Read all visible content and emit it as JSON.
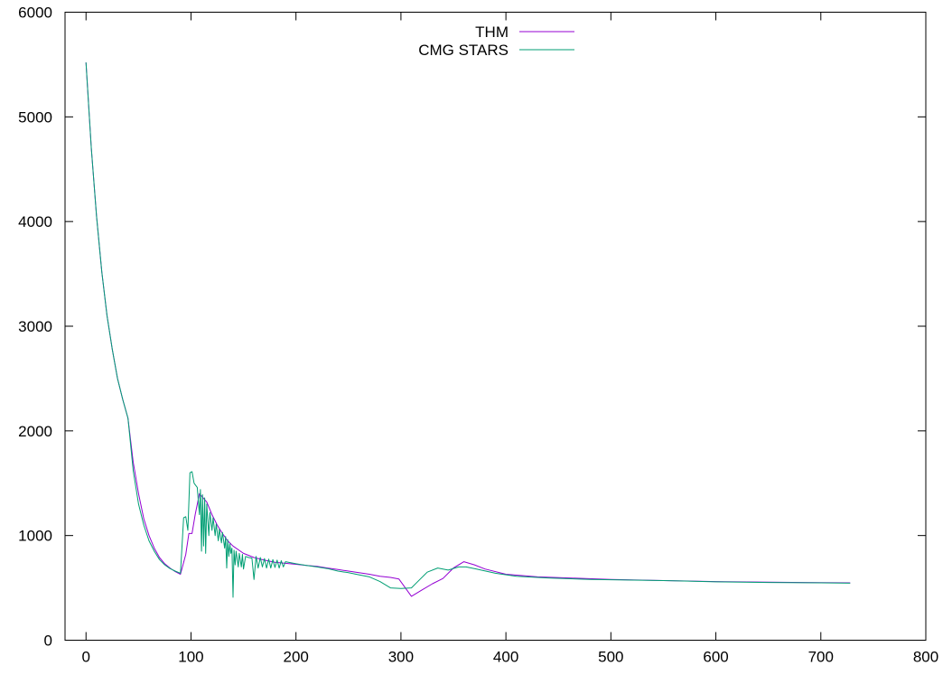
{
  "chart_data": {
    "type": "line",
    "title": "",
    "xlabel": "",
    "ylabel": "",
    "xlim": [
      -20,
      800
    ],
    "ylim": [
      0,
      6000
    ],
    "xticks": [
      0,
      100,
      200,
      300,
      400,
      500,
      600,
      700,
      800
    ],
    "yticks": [
      0,
      1000,
      2000,
      3000,
      4000,
      5000,
      6000
    ],
    "grid": false,
    "legend_position": "top-center",
    "series": [
      {
        "name": "THM",
        "color": "#9400d3",
        "points": [
          [
            0,
            5520
          ],
          [
            5,
            4700
          ],
          [
            10,
            4050
          ],
          [
            15,
            3520
          ],
          [
            20,
            3100
          ],
          [
            25,
            2780
          ],
          [
            30,
            2500
          ],
          [
            35,
            2300
          ],
          [
            40,
            2120
          ],
          [
            45,
            1700
          ],
          [
            50,
            1400
          ],
          [
            55,
            1160
          ],
          [
            60,
            1000
          ],
          [
            65,
            880
          ],
          [
            70,
            790
          ],
          [
            75,
            730
          ],
          [
            80,
            690
          ],
          [
            85,
            655
          ],
          [
            90,
            630
          ],
          [
            95,
            820
          ],
          [
            98,
            1020
          ],
          [
            101,
            1020
          ],
          [
            104,
            1200
          ],
          [
            108,
            1400
          ],
          [
            115,
            1320
          ],
          [
            120,
            1200
          ],
          [
            125,
            1100
          ],
          [
            130,
            1020
          ],
          [
            135,
            950
          ],
          [
            140,
            900
          ],
          [
            150,
            830
          ],
          [
            160,
            790
          ],
          [
            170,
            765
          ],
          [
            180,
            745
          ],
          [
            190,
            735
          ],
          [
            200,
            725
          ],
          [
            210,
            715
          ],
          [
            220,
            705
          ],
          [
            230,
            690
          ],
          [
            240,
            675
          ],
          [
            250,
            660
          ],
          [
            260,
            645
          ],
          [
            270,
            630
          ],
          [
            280,
            610
          ],
          [
            290,
            600
          ],
          [
            298,
            585
          ],
          [
            310,
            420
          ],
          [
            320,
            480
          ],
          [
            330,
            540
          ],
          [
            340,
            590
          ],
          [
            350,
            690
          ],
          [
            360,
            750
          ],
          [
            370,
            720
          ],
          [
            380,
            680
          ],
          [
            400,
            630
          ],
          [
            430,
            605
          ],
          [
            460,
            595
          ],
          [
            500,
            580
          ],
          [
            550,
            570
          ],
          [
            600,
            560
          ],
          [
            650,
            555
          ],
          [
            700,
            550
          ],
          [
            728,
            548
          ]
        ]
      },
      {
        "name": "CMG STARS",
        "color": "#009e73",
        "points": [
          [
            0,
            5520
          ],
          [
            5,
            4700
          ],
          [
            10,
            4050
          ],
          [
            15,
            3520
          ],
          [
            20,
            3100
          ],
          [
            25,
            2780
          ],
          [
            30,
            2500
          ],
          [
            35,
            2300
          ],
          [
            40,
            2120
          ],
          [
            45,
            1620
          ],
          [
            50,
            1300
          ],
          [
            55,
            1100
          ],
          [
            60,
            950
          ],
          [
            65,
            850
          ],
          [
            70,
            770
          ],
          [
            75,
            720
          ],
          [
            80,
            685
          ],
          [
            85,
            660
          ],
          [
            90,
            640
          ],
          [
            93,
            1170
          ],
          [
            95,
            1180
          ],
          [
            97,
            1050
          ],
          [
            99,
            1600
          ],
          [
            101,
            1610
          ],
          [
            103,
            1500
          ],
          [
            106,
            1460
          ],
          [
            108,
            1200
          ],
          [
            109,
            1440
          ],
          [
            110,
            850
          ],
          [
            111,
            1390
          ],
          [
            112,
            900
          ],
          [
            113,
            1360
          ],
          [
            114,
            830
          ],
          [
            115,
            1300
          ],
          [
            117,
            1000
          ],
          [
            118,
            1220
          ],
          [
            120,
            1050
          ],
          [
            121,
            1170
          ],
          [
            123,
            1000
          ],
          [
            124,
            1110
          ],
          [
            126,
            950
          ],
          [
            127,
            1060
          ],
          [
            129,
            930
          ],
          [
            130,
            1030
          ],
          [
            132,
            880
          ],
          [
            133,
            990
          ],
          [
            134,
            690
          ],
          [
            135,
            960
          ],
          [
            136,
            800
          ],
          [
            137,
            920
          ],
          [
            138,
            830
          ],
          [
            139,
            880
          ],
          [
            140,
            410
          ],
          [
            141,
            860
          ],
          [
            142,
            720
          ],
          [
            143,
            850
          ],
          [
            145,
            700
          ],
          [
            146,
            830
          ],
          [
            148,
            700
          ],
          [
            149,
            820
          ],
          [
            150,
            680
          ],
          [
            152,
            800
          ],
          [
            155,
            790
          ],
          [
            158,
            785
          ],
          [
            160,
            580
          ],
          [
            162,
            800
          ],
          [
            164,
            690
          ],
          [
            166,
            790
          ],
          [
            168,
            700
          ],
          [
            170,
            780
          ],
          [
            172,
            690
          ],
          [
            174,
            775
          ],
          [
            176,
            690
          ],
          [
            178,
            770
          ],
          [
            180,
            695
          ],
          [
            182,
            765
          ],
          [
            184,
            690
          ],
          [
            186,
            760
          ],
          [
            188,
            700
          ],
          [
            190,
            750
          ],
          [
            195,
            740
          ],
          [
            200,
            730
          ],
          [
            210,
            715
          ],
          [
            220,
            700
          ],
          [
            230,
            685
          ],
          [
            240,
            660
          ],
          [
            250,
            645
          ],
          [
            260,
            625
          ],
          [
            270,
            605
          ],
          [
            280,
            560
          ],
          [
            290,
            500
          ],
          [
            300,
            495
          ],
          [
            310,
            500
          ],
          [
            315,
            550
          ],
          [
            325,
            650
          ],
          [
            335,
            690
          ],
          [
            345,
            670
          ],
          [
            355,
            700
          ],
          [
            362,
            700
          ],
          [
            372,
            680
          ],
          [
            390,
            640
          ],
          [
            410,
            610
          ],
          [
            440,
            595
          ],
          [
            480,
            580
          ],
          [
            550,
            570
          ],
          [
            600,
            558
          ],
          [
            650,
            552
          ],
          [
            700,
            548
          ],
          [
            728,
            545
          ]
        ]
      }
    ]
  }
}
